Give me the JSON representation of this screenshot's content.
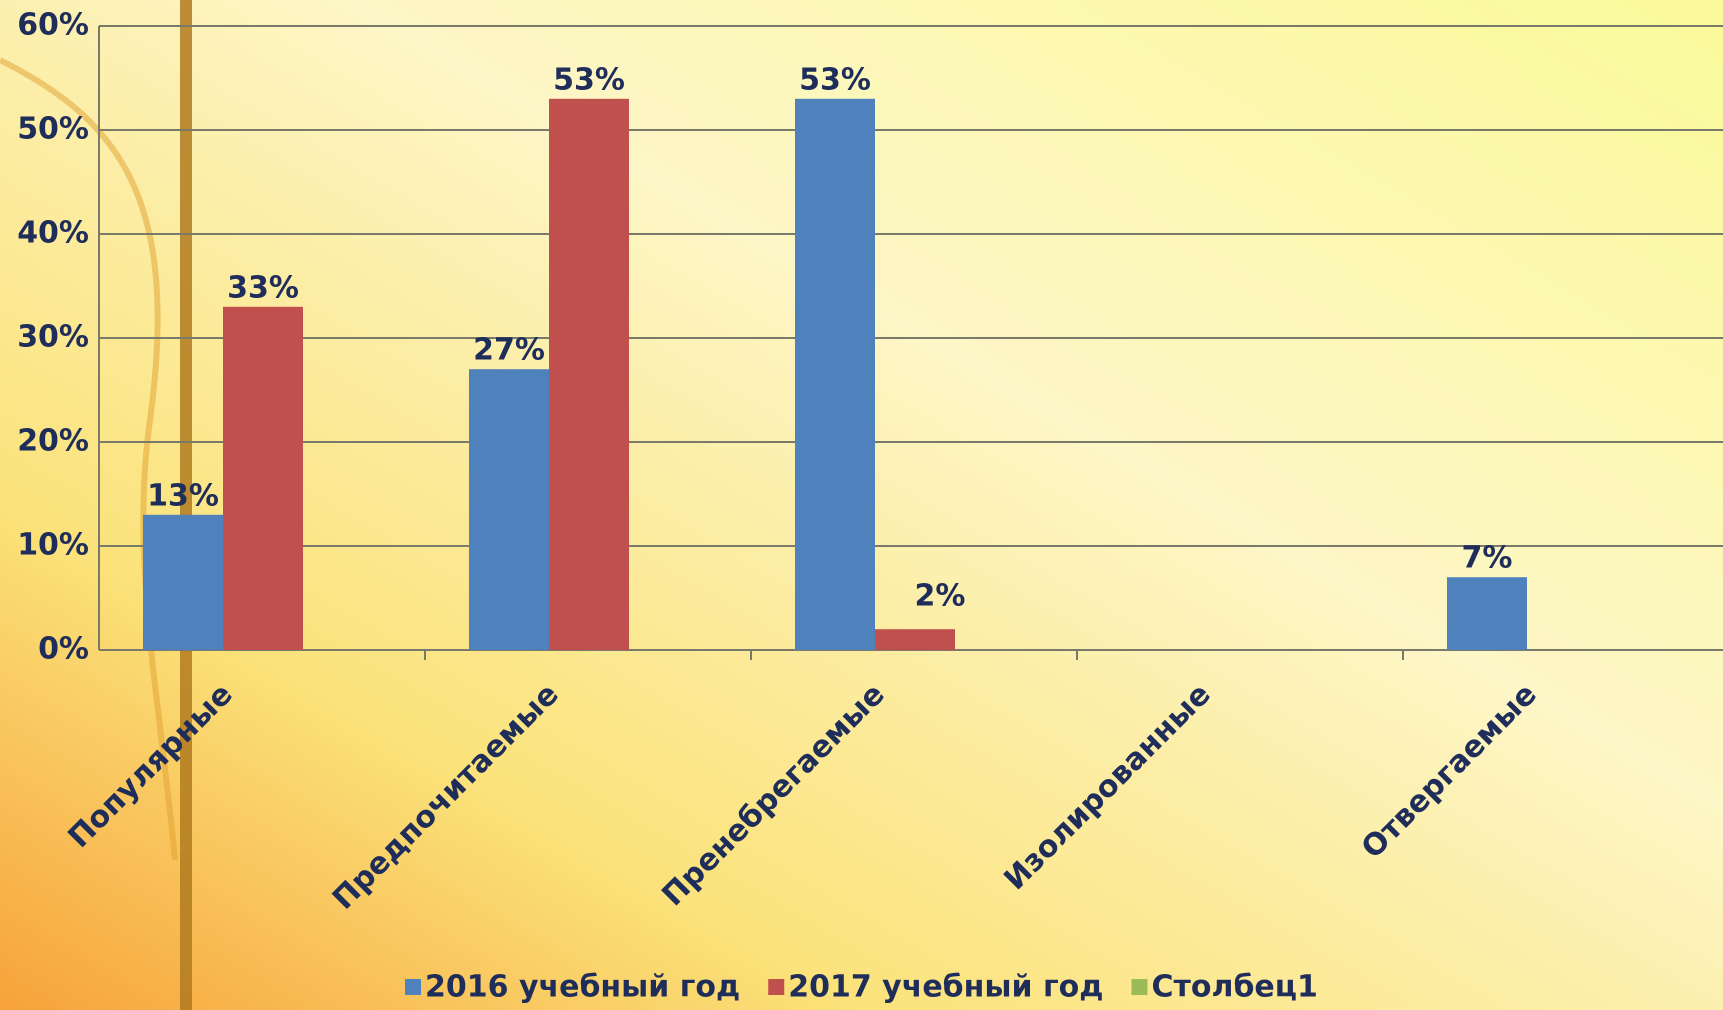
{
  "chart_data": {
    "type": "bar",
    "categories": [
      "Популярные",
      "Предпочитаемые",
      "Пренебрегаемые",
      "Изолированные",
      "Отвергаемые"
    ],
    "series": [
      {
        "name": "2016 учебный год",
        "color": "#4f81bd",
        "values": [
          13,
          27,
          53,
          null,
          7
        ],
        "value_labels": [
          "13%",
          "27%",
          "53%",
          null,
          "7%"
        ]
      },
      {
        "name": "2017 учебный год",
        "color": "#c0504d",
        "values": [
          33,
          53,
          2,
          null,
          null
        ],
        "value_labels": [
          "33%",
          "53%",
          "2%",
          null,
          null
        ]
      },
      {
        "name": "Столбец1",
        "color": "#9bbb59",
        "values": [
          null,
          null,
          null,
          null,
          null
        ],
        "value_labels": [
          null,
          null,
          null,
          null,
          null
        ]
      }
    ],
    "ylim": [
      0,
      60
    ],
    "yticks": [
      {
        "value": 0,
        "label": "0%"
      },
      {
        "value": 10,
        "label": "10%"
      },
      {
        "value": 20,
        "label": "20%"
      },
      {
        "value": 30,
        "label": "30%"
      },
      {
        "value": 40,
        "label": "40%"
      },
      {
        "value": 50,
        "label": "50%"
      },
      {
        "value": 60,
        "label": "60%"
      }
    ],
    "grid": true,
    "legend": "bottom"
  }
}
